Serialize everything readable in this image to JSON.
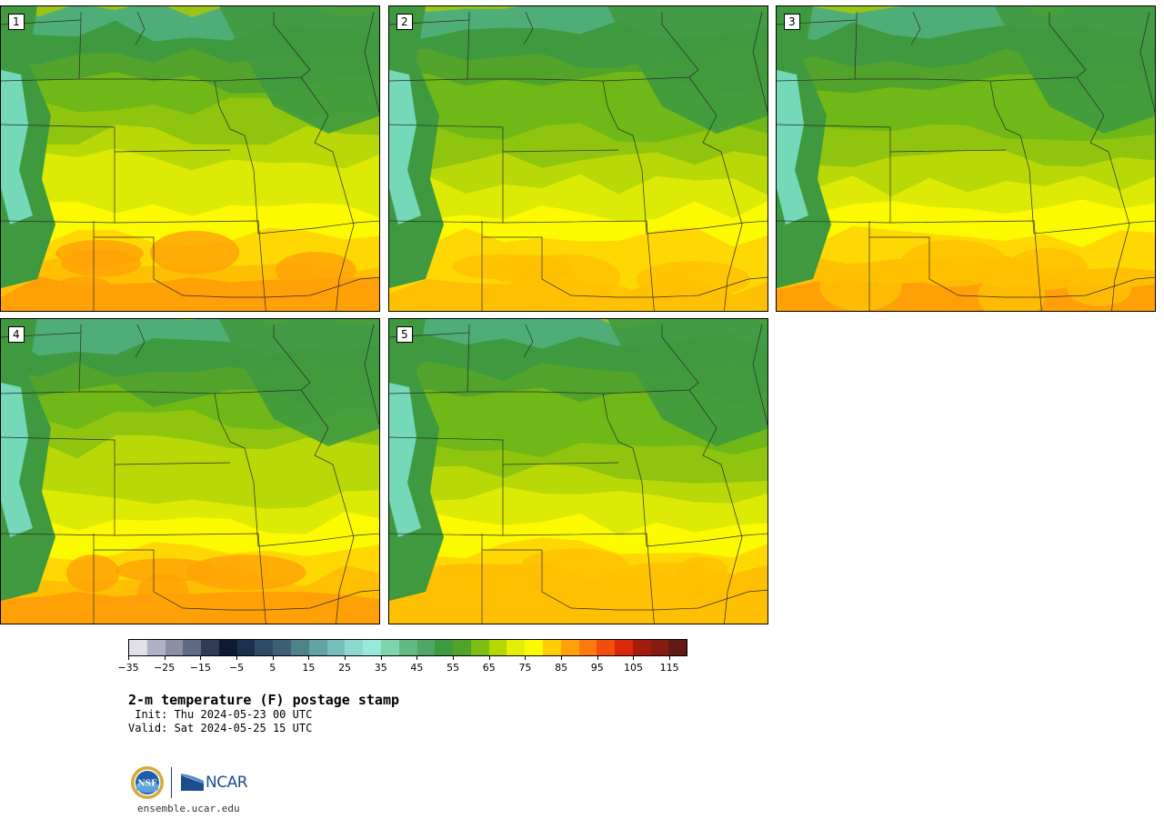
{
  "title": "2-m temperature (F) postage stamp",
  "init": " Init: Thu 2024-05-23 00 UTC",
  "valid": "Valid: Sat 2024-05-25 15 UTC",
  "website": "ensemble.ucar.edu",
  "logos": {
    "nsf_text": "NSF",
    "ncar_text": "NCAR"
  },
  "panels": [
    {
      "label": "1",
      "warmth": 0.8
    },
    {
      "label": "2",
      "warmth": 0.55
    },
    {
      "label": "3",
      "warmth": 0.65
    },
    {
      "label": "4",
      "warmth": 0.75
    },
    {
      "label": "5",
      "warmth": 0.6
    }
  ],
  "colorbar": {
    "min": -35,
    "max": 120,
    "step": 5,
    "tick_labels": [
      "−35",
      "−25",
      "−15",
      "−5",
      "5",
      "15",
      "25",
      "35",
      "45",
      "55",
      "65",
      "75",
      "85",
      "95",
      "105",
      "115"
    ],
    "colors": [
      "#e0e0ea",
      "#b0b0c8",
      "#8a8fa6",
      "#5f6a86",
      "#2e3c5a",
      "#0e1a33",
      "#1b2f4f",
      "#2d4a66",
      "#3c6075",
      "#4e8289",
      "#63a3a6",
      "#76bdbc",
      "#8fd8d1",
      "#9ae8dc",
      "#7fd3ad",
      "#63b981",
      "#52a664",
      "#3e9a3e",
      "#4fa22a",
      "#7cbd13",
      "#b5d805",
      "#e6ee05",
      "#fbfa00",
      "#ffcd03",
      "#ffa107",
      "#ff7a0e",
      "#f24e0c",
      "#d9290a",
      "#a31c0e",
      "#861c10",
      "#601a12"
    ]
  }
}
